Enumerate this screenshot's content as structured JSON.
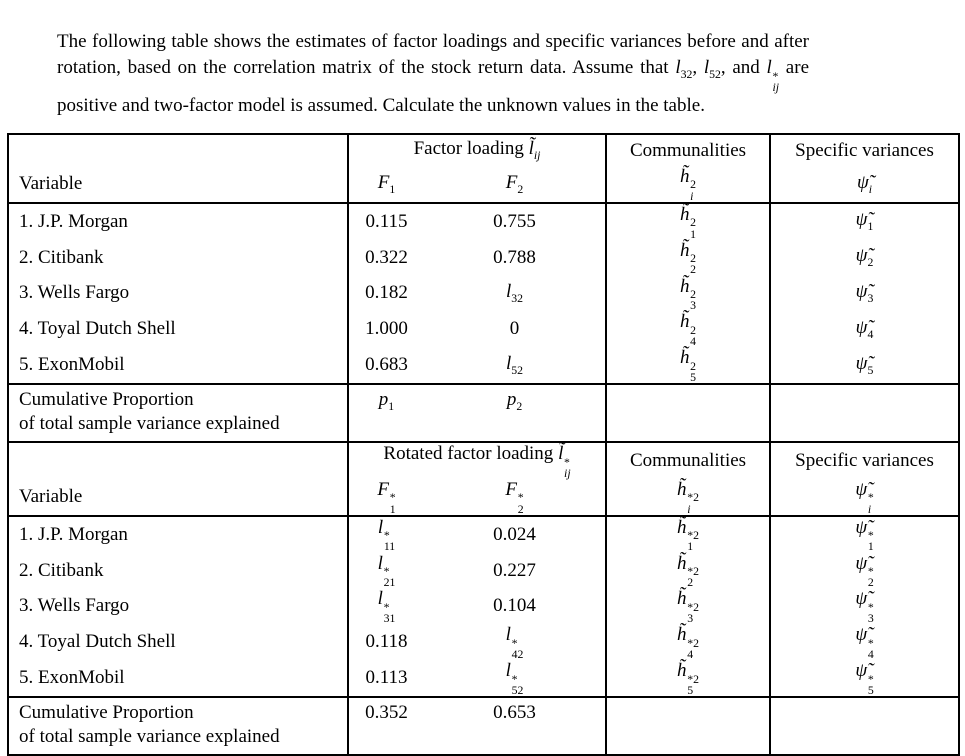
{
  "problem": {
    "text": "The following table shows the estimates of factor loadings and specific variances before and after rotation, based on the correlation matrix of the stock return data. Assume that <i>l</i><sub>32</sub>, <i>l</i><sub>52</sub>, and <i>l</i><span class=\"ss\"><span>*</span><span><i>ij</i></span></span> are positive and two-factor model is assumed. Calculate the unknown values in the table."
  },
  "table": {
    "sections": [
      {
        "header": {
          "variable": "Variable",
          "loading": "Factor loading <i>l̃</i><sub><i>ij</i></sub>",
          "communalities": "Communalities",
          "variances": "Specific variances",
          "f1": "<i>F</i><sub>1</sub>",
          "f2": "<i>F</i><sub>2</sub>",
          "comm_symbol": "<i>h̃</i><span class=\"ss\"><span>2</span><span><i>i</i></span></span>",
          "var_symbol": "<i>ψ̃</i><sub><i>i</i></sub>"
        },
        "rows": [
          {
            "variable": "1. J.P. Morgan",
            "f1": "0.115",
            "f2": "0.755",
            "comm": "<i>h̃</i><span class=\"ss\"><span>2</span><span>1</span></span>",
            "psi": "<i>ψ̃</i><sub>1</sub>"
          },
          {
            "variable": "2. Citibank",
            "f1": "0.322",
            "f2": "0.788",
            "comm": "<i>h̃</i><span class=\"ss\"><span>2</span><span>2</span></span>",
            "psi": "<i>ψ̃</i><sub>2</sub>"
          },
          {
            "variable": "3. Wells Fargo",
            "f1": "0.182",
            "f2": "<i>l</i><sub>32</sub>",
            "comm": "<i>h̃</i><span class=\"ss\"><span>2</span><span>3</span></span>",
            "psi": "<i>ψ̃</i><sub>3</sub>"
          },
          {
            "variable": "4. Toyal Dutch Shell",
            "f1": "1.000",
            "f2": "0",
            "comm": "<i>h̃</i><span class=\"ss\"><span>2</span><span>4</span></span>",
            "psi": "<i>ψ̃</i><sub>4</sub>"
          },
          {
            "variable": "5. ExonMobil",
            "f1": "0.683",
            "f2": "<i>l</i><sub>52</sub>",
            "comm": "<i>h̃</i><span class=\"ss\"><span>2</span><span>5</span></span>",
            "psi": "<i>ψ̃</i><sub>5</sub>"
          }
        ],
        "footer": {
          "line1": "Cumulative Proportion",
          "line2": "of total sample variance explained",
          "f1": "<i>p</i><sub>1</sub>",
          "f2": "<i>p</i><sub>2</sub>"
        }
      },
      {
        "header": {
          "variable": "Variable",
          "loading": "Rotated factor loading <i>l̃</i><span class=\"ss\"><span>*</span><span><i>ij</i></span></span>",
          "communalities": "Communalities",
          "variances": "Specific variances",
          "f1": "<i>F</i><span class=\"ss\"><span>*</span><span>1</span></span>",
          "f2": "<i>F</i><span class=\"ss\"><span>*</span><span>2</span></span>",
          "comm_symbol": "<i>h̃</i><span class=\"ss\"><span>*2</span><span><i>i</i></span></span>",
          "var_symbol": "<i>ψ̃</i><span class=\"ss\"><span>*</span><span><i>i</i></span></span>"
        },
        "rows": [
          {
            "variable": "1. J.P. Morgan",
            "f1": "<i>l</i><span class=\"ss\"><span>*</span><span>11</span></span>",
            "f2": "0.024",
            "comm": "<i>h̃</i><span class=\"ss\"><span>*2</span><span>1</span></span>",
            "psi": "<i>ψ̃</i><span class=\"ss\"><span>*</span><span>1</span></span>"
          },
          {
            "variable": "2. Citibank",
            "f1": "<i>l</i><span class=\"ss\"><span>*</span><span>21</span></span>",
            "f2": "0.227",
            "comm": "<i>h̃</i><span class=\"ss\"><span>*2</span><span>2</span></span>",
            "psi": "<i>ψ̃</i><span class=\"ss\"><span>*</span><span>2</span></span>"
          },
          {
            "variable": "3. Wells Fargo",
            "f1": "<i>l</i><span class=\"ss\"><span>*</span><span>31</span></span>",
            "f2": "0.104",
            "comm": "<i>h̃</i><span class=\"ss\"><span>*2</span><span>3</span></span>",
            "psi": "<i>ψ̃</i><span class=\"ss\"><span>*</span><span>3</span></span>"
          },
          {
            "variable": "4. Toyal Dutch Shell",
            "f1": "0.118",
            "f2": "<i>l</i><span class=\"ss\"><span>*</span><span>42</span></span>",
            "comm": "<i>h̃</i><span class=\"ss\"><span>*2</span><span>4</span></span>",
            "psi": "<i>ψ̃</i><span class=\"ss\"><span>*</span><span>4</span></span>"
          },
          {
            "variable": "5. ExonMobil",
            "f1": "0.113",
            "f2": "<i>l</i><span class=\"ss\"><span>*</span><span>52</span></span>",
            "comm": "<i>h̃</i><span class=\"ss\"><span>*2</span><span>5</span></span>",
            "psi": "<i>ψ̃</i><span class=\"ss\"><span>*</span><span>5</span></span>"
          }
        ],
        "footer": {
          "line1": "Cumulative Proportion",
          "line2": "of total sample variance explained",
          "f1": "0.352",
          "f2": "0.653"
        }
      }
    ]
  }
}
